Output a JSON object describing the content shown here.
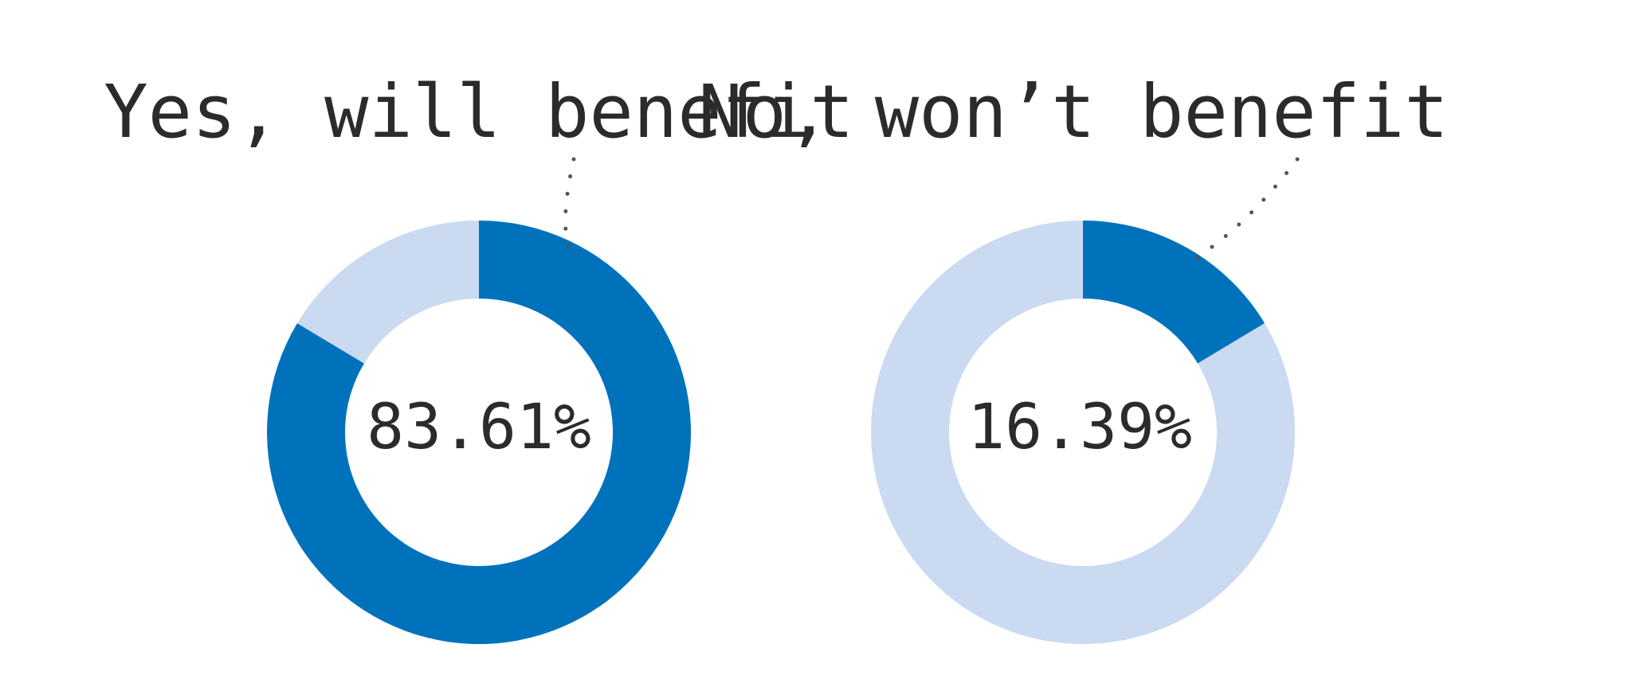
{
  "chart_data": [
    {
      "type": "pie",
      "title": "Yes, will benefit",
      "center_label": "83.61%",
      "slices": [
        {
          "label": "Yes, will benefit",
          "value": 83.61,
          "color": "#0072BC"
        },
        {
          "label": "",
          "value": 16.39,
          "color": "#C9DAF1"
        }
      ]
    },
    {
      "type": "pie",
      "title": "No, won’t benefit",
      "center_label": "16.39%",
      "slices": [
        {
          "label": "No, won’t benefit",
          "value": 16.39,
          "color": "#0072BC"
        },
        {
          "label": "",
          "value": 83.61,
          "color": "#C9DAF1"
        }
      ]
    }
  ]
}
